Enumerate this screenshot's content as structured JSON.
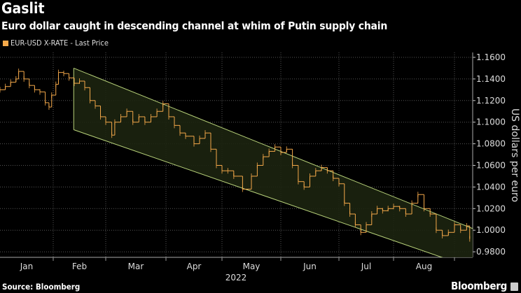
{
  "title": "Gaslit",
  "subtitle": "Euro dollar caught in descending channel at whim of Putin supply chain",
  "legend_label": "EUR-USD X-RATE - Last Price",
  "source": "Source: Bloomberg",
  "brand": "Bloomberg",
  "colors": {
    "series": "#f5a94a",
    "channel_line": "#b8d27a",
    "channel_fill": "#1c2410",
    "grid": "#555555"
  },
  "chart_data": {
    "type": "line",
    "title": "Gaslit",
    "xlabel": "2022",
    "ylabel": "US dollars per euro",
    "ylim": [
      0.975,
      1.165
    ],
    "yticks": [
      1.16,
      1.14,
      1.12,
      1.1,
      1.08,
      1.06,
      1.04,
      1.02,
      1.0,
      0.98
    ],
    "ytick_labels": [
      "1.1600",
      "1.1400",
      "1.1200",
      "1.1000",
      "1.0800",
      "1.0600",
      "1.0400",
      "1.0200",
      "1.0000",
      "0.9800"
    ],
    "xtick_labels": [
      "Jan",
      "Feb",
      "Mar",
      "Apr",
      "May",
      "Jun",
      "Jul",
      "Aug"
    ],
    "x_unit": "months since Jan 1 2022",
    "grid": true,
    "legend": "top-left",
    "series": [
      {
        "name": "EUR-USD X-RATE - Last Price",
        "points": [
          [
            0.0,
            1.13
          ],
          [
            0.1,
            1.133
          ],
          [
            0.2,
            1.137
          ],
          [
            0.3,
            1.14
          ],
          [
            0.35,
            1.147
          ],
          [
            0.45,
            1.14
          ],
          [
            0.55,
            1.134
          ],
          [
            0.65,
            1.13
          ],
          [
            0.75,
            1.128
          ],
          [
            0.85,
            1.118
          ],
          [
            0.92,
            1.114
          ],
          [
            0.97,
            1.125
          ],
          [
            1.05,
            1.135
          ],
          [
            1.1,
            1.146
          ],
          [
            1.2,
            1.145
          ],
          [
            1.3,
            1.141
          ],
          [
            1.4,
            1.136
          ],
          [
            1.5,
            1.138
          ],
          [
            1.6,
            1.132
          ],
          [
            1.7,
            1.12
          ],
          [
            1.8,
            1.115
          ],
          [
            1.9,
            1.105
          ],
          [
            2.0,
            1.1
          ],
          [
            2.1,
            1.088
          ],
          [
            2.15,
            1.1
          ],
          [
            2.25,
            1.105
          ],
          [
            2.35,
            1.11
          ],
          [
            2.45,
            1.1
          ],
          [
            2.55,
            1.105
          ],
          [
            2.65,
            1.1
          ],
          [
            2.75,
            1.105
          ],
          [
            2.85,
            1.11
          ],
          [
            2.95,
            1.117
          ],
          [
            3.05,
            1.105
          ],
          [
            3.15,
            1.097
          ],
          [
            3.25,
            1.09
          ],
          [
            3.35,
            1.087
          ],
          [
            3.5,
            1.08
          ],
          [
            3.6,
            1.085
          ],
          [
            3.7,
            1.09
          ],
          [
            3.8,
            1.075
          ],
          [
            3.9,
            1.06
          ],
          [
            4.0,
            1.055
          ],
          [
            4.1,
            1.055
          ],
          [
            4.2,
            1.05
          ],
          [
            4.35,
            1.038
          ],
          [
            4.5,
            1.05
          ],
          [
            4.6,
            1.06
          ],
          [
            4.7,
            1.068
          ],
          [
            4.8,
            1.073
          ],
          [
            4.9,
            1.077
          ],
          [
            5.0,
            1.072
          ],
          [
            5.1,
            1.075
          ],
          [
            5.2,
            1.06
          ],
          [
            5.3,
            1.045
          ],
          [
            5.4,
            1.04
          ],
          [
            5.5,
            1.05
          ],
          [
            5.6,
            1.055
          ],
          [
            5.7,
            1.058
          ],
          [
            5.8,
            1.055
          ],
          [
            5.9,
            1.048
          ],
          [
            6.0,
            1.043
          ],
          [
            6.1,
            1.025
          ],
          [
            6.2,
            1.015
          ],
          [
            6.3,
            1.005
          ],
          [
            6.4,
            0.998
          ],
          [
            6.5,
            1.005
          ],
          [
            6.6,
            1.015
          ],
          [
            6.7,
            1.02
          ],
          [
            6.8,
            1.018
          ],
          [
            6.9,
            1.02
          ],
          [
            7.0,
            1.022
          ],
          [
            7.1,
            1.02
          ],
          [
            7.2,
            1.015
          ],
          [
            7.3,
            1.025
          ],
          [
            7.4,
            1.033
          ],
          [
            7.5,
            1.02
          ],
          [
            7.6,
            1.015
          ],
          [
            7.7,
            1.0
          ],
          [
            7.8,
            0.995
          ],
          [
            7.9,
            0.998
          ],
          [
            8.0,
            1.005
          ],
          [
            8.1,
            1.0
          ],
          [
            8.2,
            1.004
          ],
          [
            8.25,
            0.992
          ]
        ]
      }
    ],
    "channel": {
      "upper": [
        [
          1.39,
          1.15
        ],
        [
          8.3,
          1.0015
        ]
      ],
      "lower": [
        [
          1.39,
          1.093
        ],
        [
          8.3,
          0.965
        ]
      ]
    }
  }
}
